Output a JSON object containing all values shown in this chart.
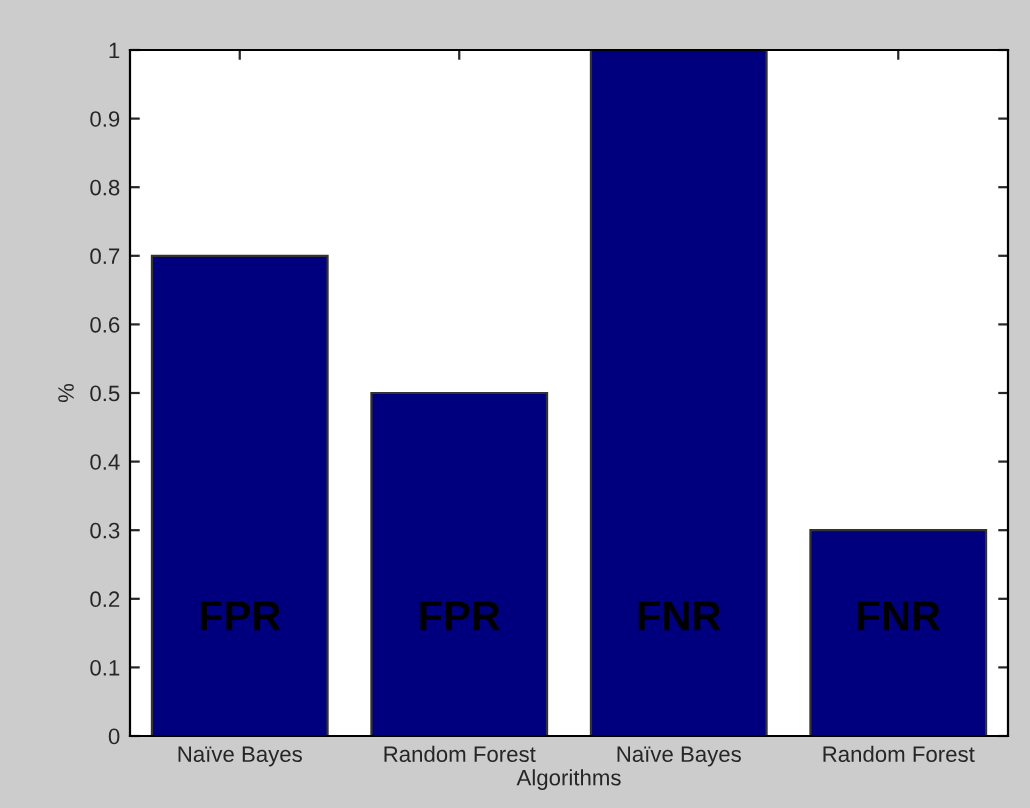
{
  "chart_data": {
    "type": "bar",
    "xlabel": "Algorithms",
    "ylabel": "%",
    "categories": [
      "Naïve Bayes",
      "Random Forest",
      "Naïve Bayes",
      "Random Forest"
    ],
    "values": [
      0.7,
      0.5,
      1.0,
      0.3
    ],
    "color": "#00007f",
    "ylim": [
      0,
      1
    ],
    "yticks": [
      0,
      0.1,
      0.2,
      0.3,
      0.4,
      0.5,
      0.6,
      0.7,
      0.8,
      0.9,
      1
    ],
    "annotations": [
      "FPR",
      "FPR",
      "FNR",
      "FNR"
    ],
    "grid": false,
    "legend": false
  }
}
